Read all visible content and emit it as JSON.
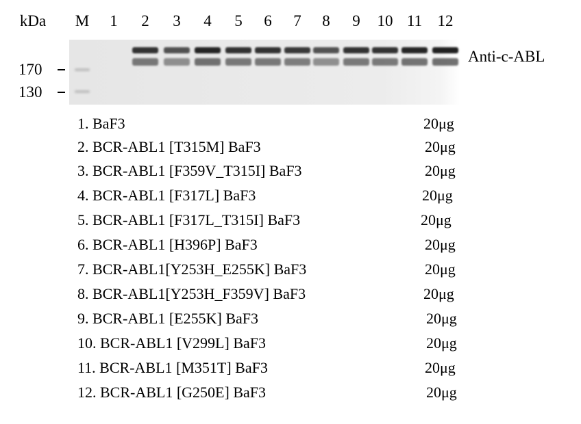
{
  "header": {
    "unit": "kDa",
    "lanes": [
      "M",
      "1",
      "2",
      "3",
      "4",
      "5",
      "6",
      "7",
      "8",
      "9",
      "10",
      "11",
      "12"
    ]
  },
  "antibody": "Anti-c-ABL",
  "markers": [
    "170",
    "130"
  ],
  "band_intensity": [
    0,
    0,
    0.85,
    0.6,
    0.95,
    0.85,
    0.85,
    0.8,
    0.6,
    0.85,
    0.85,
    0.95,
    1.0
  ],
  "samples": [
    {
      "label": "1. BaF3",
      "amount": "20μg"
    },
    {
      "label": "2. BCR-ABL1 [T315M] BaF3",
      "amount": "20μg"
    },
    {
      "label": "3. BCR-ABL1 [F359V_T315I] BaF3",
      "amount": "20μg"
    },
    {
      "label": "4. BCR-ABL1 [F317L] BaF3",
      "amount": "20μg"
    },
    {
      "label": "5. BCR-ABL1 [F317L_T315I] BaF3",
      "amount": "20μg"
    },
    {
      "label": "6. BCR-ABL1 [H396P] BaF3",
      "amount": "20μg"
    },
    {
      "label": "7. BCR-ABL1[Y253H_E255K] BaF3",
      "amount": "20μg"
    },
    {
      "label": "8. BCR-ABL1[Y253H_F359V] BaF3",
      "amount": "20μg"
    },
    {
      "label": "9. BCR-ABL1 [E255K] BaF3",
      "amount": "20μg"
    },
    {
      "label": "10. BCR-ABL1 [V299L] BaF3",
      "amount": "20μg"
    },
    {
      "label": "11. BCR-ABL1 [M351T] BaF3",
      "amount": "20μg"
    },
    {
      "label": "12. BCR-ABL1 [G250E] BaF3",
      "amount": "20μg"
    }
  ]
}
